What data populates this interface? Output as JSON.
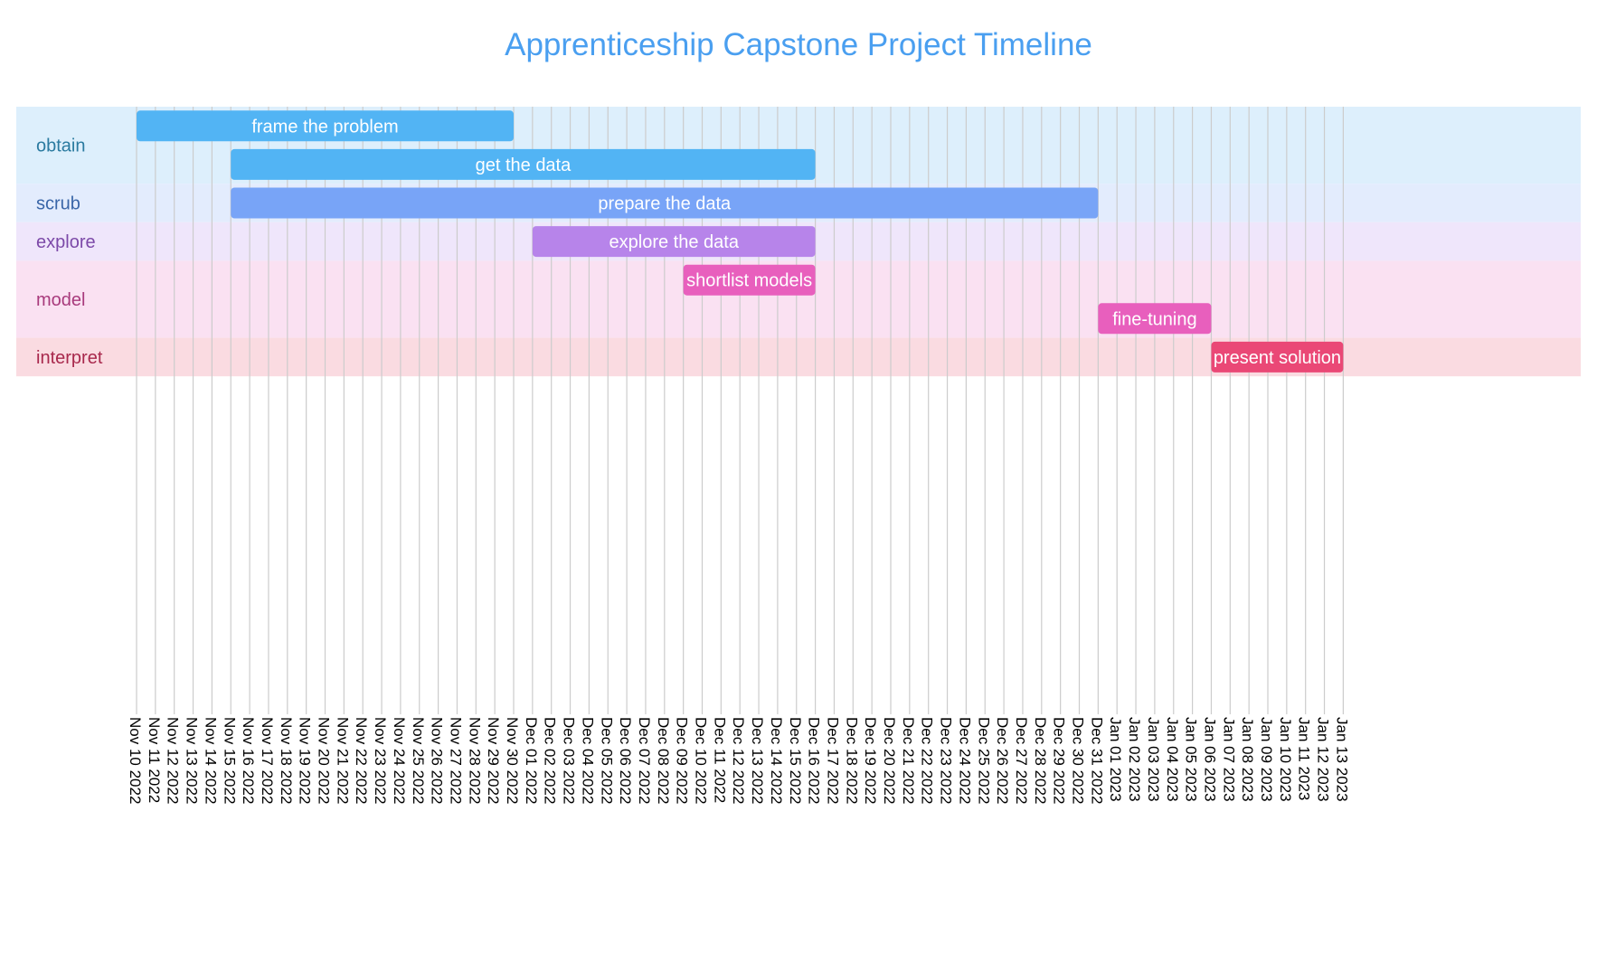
{
  "chart_data": {
    "type": "gantt",
    "title": "Apprenticeship Capstone Project Timeline",
    "sections": [
      {
        "name": "obtain",
        "label_color": "#2a7aa0",
        "band_color": "#ddeffc",
        "tasks": [
          {
            "name": "frame the problem",
            "start": "2022-11-10",
            "end": "2022-11-30",
            "color": "#52b4f4"
          },
          {
            "name": "get the data",
            "start": "2022-11-15",
            "end": "2022-12-16",
            "color": "#52b4f4"
          }
        ]
      },
      {
        "name": "scrub",
        "label_color": "#3a66a8",
        "band_color": "#e3ecfd",
        "tasks": [
          {
            "name": "prepare the data",
            "start": "2022-11-15",
            "end": "2022-12-31",
            "color": "#78a4f7"
          }
        ]
      },
      {
        "name": "explore",
        "label_color": "#7c49a8",
        "band_color": "#efe6fb",
        "tasks": [
          {
            "name": "explore the data",
            "start": "2022-12-01",
            "end": "2022-12-16",
            "color": "#b784ea"
          }
        ]
      },
      {
        "name": "model",
        "label_color": "#a83a7c",
        "band_color": "#fae1f2",
        "tasks": [
          {
            "name": "shortlist models",
            "start": "2022-12-09",
            "end": "2022-12-16",
            "color": "#e85fbd"
          },
          {
            "name": "fine-tuning",
            "start": "2022-12-31",
            "end": "2023-01-06",
            "color": "#e85fbd"
          }
        ]
      },
      {
        "name": "interpret",
        "label_color": "#a8284c",
        "band_color": "#fadbe1",
        "tasks": [
          {
            "name": "present solution",
            "start": "2023-01-06",
            "end": "2023-01-13",
            "color": "#ea4876"
          }
        ]
      }
    ],
    "x_range": [
      "2022-11-10",
      "2023-01-13"
    ],
    "tick_labels": [
      "Nov 10 2022",
      "Nov 11 2022",
      "Nov 12 2022",
      "Nov 13 2022",
      "Nov 14 2022",
      "Nov 15 2022",
      "Nov 16 2022",
      "Nov 17 2022",
      "Nov 18 2022",
      "Nov 19 2022",
      "Nov 20 2022",
      "Nov 21 2022",
      "Nov 22 2022",
      "Nov 23 2022",
      "Nov 24 2022",
      "Nov 25 2022",
      "Nov 26 2022",
      "Nov 27 2022",
      "Nov 28 2022",
      "Nov 29 2022",
      "Nov 30 2022",
      "Dec 01 2022",
      "Dec 02 2022",
      "Dec 03 2022",
      "Dec 04 2022",
      "Dec 05 2022",
      "Dec 06 2022",
      "Dec 07 2022",
      "Dec 08 2022",
      "Dec 09 2022",
      "Dec 10 2022",
      "Dec 11 2022",
      "Dec 12 2022",
      "Dec 13 2022",
      "Dec 14 2022",
      "Dec 15 2022",
      "Dec 16 2022",
      "Dec 17 2022",
      "Dec 18 2022",
      "Dec 19 2022",
      "Dec 20 2022",
      "Dec 21 2022",
      "Dec 22 2022",
      "Dec 23 2022",
      "Dec 24 2022",
      "Dec 25 2022",
      "Dec 26 2022",
      "Dec 27 2022",
      "Dec 28 2022",
      "Dec 29 2022",
      "Dec 30 2022",
      "Dec 31 2022",
      "Jan 01 2023",
      "Jan 02 2023",
      "Jan 03 2023",
      "Jan 04 2023",
      "Jan 05 2023",
      "Jan 06 2023",
      "Jan 07 2023",
      "Jan 08 2023",
      "Jan 09 2023",
      "Jan 10 2023",
      "Jan 11 2023",
      "Jan 12 2023",
      "Jan 13 2023"
    ],
    "grid": true,
    "title_color": "#4a9ff0"
  }
}
